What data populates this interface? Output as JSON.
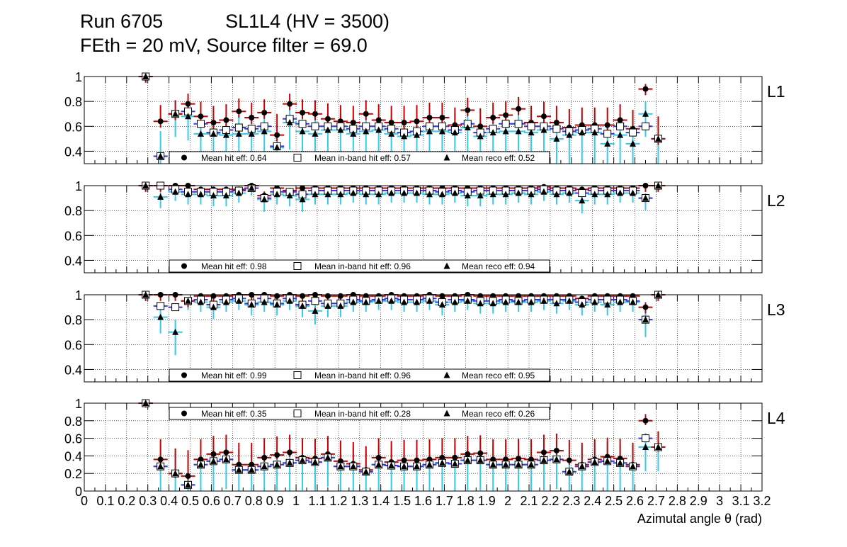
{
  "header": {
    "run": "Run 6705",
    "chamber": "SL1L4 (HV = 3500)",
    "settings": "FEth = 20 mV, Source filter = 69.0"
  },
  "chart_data": {
    "type": "scatter",
    "xlabel": "Azimutal angle θ (rad)",
    "x_range": [
      0,
      3.2
    ],
    "x_ticks": [
      0,
      0.1,
      0.2,
      0.3,
      0.4,
      0.5,
      0.6,
      0.7,
      0.8,
      0.9,
      1,
      1.1,
      1.2,
      1.3,
      1.4,
      1.5,
      1.6,
      1.7,
      1.8,
      1.9,
      2,
      2.1,
      2.2,
      2.3,
      2.4,
      2.5,
      2.6,
      2.7,
      2.8,
      2.9,
      3,
      3.1,
      3.2
    ],
    "x_tick_labels": [
      "0",
      "0.1",
      "0.2",
      "0.3",
      "0.4",
      "0.5",
      "0.6",
      "0.7",
      "0.8",
      "0.9",
      "1",
      "1.1",
      "1.2",
      "1.3",
      "1.4",
      "1.5",
      "1.6",
      "1.7",
      "1.8",
      "1.9",
      "2",
      "2.1",
      "2.2",
      "2.3",
      "2.4",
      "2.5",
      "2.6",
      "2.7",
      "2.8",
      "2.9",
      "3",
      "3.1",
      "3.2"
    ],
    "x": [
      0.29,
      0.36,
      0.43,
      0.49,
      0.55,
      0.61,
      0.67,
      0.73,
      0.79,
      0.85,
      0.91,
      0.97,
      1.03,
      1.09,
      1.15,
      1.21,
      1.27,
      1.33,
      1.39,
      1.45,
      1.51,
      1.57,
      1.63,
      1.69,
      1.75,
      1.81,
      1.87,
      1.93,
      1.99,
      2.05,
      2.11,
      2.17,
      2.23,
      2.29,
      2.35,
      2.41,
      2.47,
      2.53,
      2.59,
      2.65,
      2.71
    ],
    "series_names": [
      "Mean hit eff",
      "Mean in-band hit eff",
      "Mean reco eff"
    ],
    "grid": true,
    "panels": [
      {
        "label": "L1",
        "ylim": [
          0.3,
          1.0
        ],
        "y_ticks": [
          0.4,
          0.6,
          0.8,
          1
        ],
        "legend": [
          "Mean hit  eff: 0.64",
          "Mean in-band hit eff: 0.57",
          "Mean reco eff: 0.52"
        ],
        "hit": [
          1.0,
          0.64,
          0.7,
          0.78,
          0.68,
          0.63,
          0.65,
          0.72,
          0.67,
          0.71,
          0.53,
          0.78,
          0.71,
          0.7,
          0.66,
          0.64,
          0.63,
          0.7,
          0.65,
          0.63,
          0.63,
          0.64,
          0.67,
          0.67,
          0.61,
          0.73,
          0.6,
          0.67,
          0.69,
          0.74,
          0.63,
          0.68,
          0.63,
          0.59,
          0.61,
          0.61,
          0.61,
          0.65,
          0.58,
          0.9,
          0.5
        ],
        "inband": [
          1.0,
          0.36,
          0.7,
          0.72,
          0.62,
          0.55,
          0.57,
          0.59,
          0.58,
          0.6,
          0.44,
          0.66,
          0.62,
          0.6,
          0.6,
          0.6,
          0.58,
          0.6,
          0.6,
          0.58,
          0.55,
          0.56,
          0.6,
          0.6,
          0.57,
          0.62,
          0.55,
          0.58,
          0.62,
          0.62,
          0.6,
          0.6,
          0.58,
          0.56,
          0.57,
          0.58,
          0.54,
          0.6,
          0.55,
          0.6,
          0.5
        ],
        "reco": [
          1.0,
          0.36,
          0.7,
          0.68,
          0.54,
          0.54,
          0.53,
          0.54,
          0.54,
          0.56,
          0.43,
          0.63,
          0.56,
          0.54,
          0.57,
          0.57,
          0.54,
          0.56,
          0.57,
          0.54,
          0.52,
          0.53,
          0.56,
          0.56,
          0.55,
          0.59,
          0.52,
          0.55,
          0.56,
          0.56,
          0.55,
          0.57,
          0.5,
          0.53,
          0.55,
          0.55,
          0.46,
          0.53,
          0.46,
          0.7,
          0.5
        ]
      },
      {
        "label": "L2",
        "ylim": [
          0.3,
          1.0
        ],
        "y_ticks": [
          0.4,
          0.6,
          0.8,
          1
        ],
        "legend": [
          "Mean hit  eff: 0.98",
          "Mean in-band hit eff: 0.96",
          "Mean reco eff: 0.94"
        ],
        "hit": [
          1.0,
          1.0,
          1.0,
          1.0,
          0.97,
          0.97,
          0.97,
          0.97,
          1.0,
          0.92,
          0.98,
          0.96,
          0.98,
          0.98,
          0.98,
          0.98,
          0.98,
          0.98,
          0.98,
          0.98,
          0.98,
          0.98,
          0.98,
          0.98,
          0.98,
          0.98,
          0.98,
          0.98,
          0.98,
          0.98,
          0.98,
          0.99,
          0.98,
          0.98,
          0.97,
          0.98,
          0.98,
          0.98,
          0.98,
          1.0,
          1.0
        ],
        "inband": [
          1.0,
          1.0,
          0.97,
          0.95,
          0.95,
          0.95,
          0.95,
          0.96,
          0.98,
          0.9,
          0.95,
          0.95,
          0.93,
          0.96,
          0.96,
          0.96,
          0.96,
          0.96,
          0.96,
          0.96,
          0.96,
          0.96,
          0.96,
          0.95,
          0.96,
          0.95,
          0.96,
          0.96,
          0.96,
          0.96,
          0.96,
          0.97,
          0.96,
          0.96,
          0.94,
          0.96,
          0.96,
          0.96,
          0.96,
          0.9,
          1.0
        ],
        "reco": [
          1.0,
          0.91,
          0.95,
          0.93,
          0.93,
          0.92,
          0.92,
          0.94,
          0.98,
          0.89,
          0.93,
          0.92,
          0.89,
          0.93,
          0.93,
          0.93,
          0.94,
          0.93,
          0.93,
          0.94,
          0.94,
          0.94,
          0.93,
          0.93,
          0.94,
          0.92,
          0.92,
          0.93,
          0.93,
          0.94,
          0.93,
          0.95,
          0.93,
          0.94,
          0.88,
          0.93,
          0.93,
          0.94,
          0.94,
          0.9,
          1.0
        ]
      },
      {
        "label": "L3",
        "ylim": [
          0.3,
          1.0
        ],
        "y_ticks": [
          0.4,
          0.6,
          0.8,
          1
        ],
        "legend": [
          "Mean hit  eff: 0.99",
          "Mean in-band hit eff: 0.96",
          "Mean reco eff: 0.95"
        ],
        "hit": [
          1.0,
          1.0,
          1.0,
          0.95,
          0.99,
          0.99,
          0.99,
          1.0,
          1.0,
          1.0,
          0.99,
          1.0,
          0.99,
          1.0,
          0.99,
          0.99,
          1.0,
          0.99,
          0.99,
          1.0,
          0.99,
          0.99,
          1.0,
          0.99,
          0.99,
          1.0,
          0.99,
          0.99,
          0.99,
          0.99,
          0.99,
          0.99,
          0.99,
          0.99,
          0.97,
          0.99,
          0.99,
          0.99,
          0.99,
          0.9,
          1.0
        ],
        "inband": [
          1.0,
          0.91,
          0.9,
          0.95,
          0.96,
          0.92,
          0.96,
          0.97,
          0.93,
          0.97,
          0.93,
          0.97,
          0.92,
          0.95,
          0.93,
          0.93,
          0.96,
          0.95,
          0.96,
          0.97,
          0.96,
          0.96,
          0.97,
          0.94,
          0.96,
          0.96,
          0.95,
          0.95,
          0.96,
          0.95,
          0.96,
          0.96,
          0.96,
          0.96,
          0.94,
          0.96,
          0.96,
          0.96,
          0.95,
          0.8,
          1.0
        ],
        "reco": [
          1.0,
          0.82,
          0.7,
          0.95,
          0.94,
          0.9,
          0.94,
          0.95,
          0.92,
          0.94,
          0.92,
          0.95,
          0.91,
          0.87,
          0.91,
          0.91,
          0.94,
          0.94,
          0.95,
          0.95,
          0.94,
          0.94,
          0.95,
          0.92,
          0.94,
          0.95,
          0.93,
          0.93,
          0.94,
          0.94,
          0.94,
          0.95,
          0.93,
          0.95,
          0.92,
          0.94,
          0.92,
          0.94,
          0.94,
          0.8,
          1.0
        ]
      },
      {
        "label": "L4",
        "ylim": [
          0.0,
          1.0
        ],
        "y_ticks": [
          0,
          0.2,
          0.4,
          0.6,
          0.8,
          1
        ],
        "legend": [
          "Mean hit  eff: 0.35",
          "Mean in-band hit eff: 0.28",
          "Mean reco eff: 0.26"
        ],
        "hit": [
          1.0,
          0.36,
          0.2,
          0.17,
          0.36,
          0.42,
          0.44,
          0.3,
          0.3,
          0.38,
          0.41,
          0.44,
          0.38,
          0.37,
          0.42,
          0.34,
          0.31,
          0.24,
          0.38,
          0.33,
          0.35,
          0.35,
          0.36,
          0.38,
          0.38,
          0.42,
          0.43,
          0.36,
          0.36,
          0.37,
          0.36,
          0.44,
          0.46,
          0.35,
          0.3,
          0.36,
          0.39,
          0.37,
          0.3,
          0.8,
          0.5
        ],
        "inband": [
          1.0,
          0.28,
          0.2,
          0.07,
          0.3,
          0.34,
          0.36,
          0.24,
          0.24,
          0.28,
          0.3,
          0.32,
          0.35,
          0.33,
          0.38,
          0.28,
          0.28,
          0.22,
          0.3,
          0.29,
          0.28,
          0.28,
          0.3,
          0.32,
          0.31,
          0.35,
          0.35,
          0.3,
          0.3,
          0.3,
          0.3,
          0.35,
          0.36,
          0.22,
          0.28,
          0.33,
          0.34,
          0.32,
          0.28,
          0.6,
          0.5
        ],
        "reco": [
          1.0,
          0.28,
          0.2,
          0.07,
          0.3,
          0.34,
          0.36,
          0.24,
          0.24,
          0.28,
          0.3,
          0.32,
          0.35,
          0.33,
          0.38,
          0.28,
          0.28,
          0.22,
          0.3,
          0.29,
          0.28,
          0.28,
          0.3,
          0.32,
          0.31,
          0.35,
          0.35,
          0.3,
          0.3,
          0.3,
          0.3,
          0.35,
          0.36,
          0.22,
          0.28,
          0.33,
          0.34,
          0.32,
          0.28,
          0.5,
          0.5
        ]
      }
    ]
  }
}
